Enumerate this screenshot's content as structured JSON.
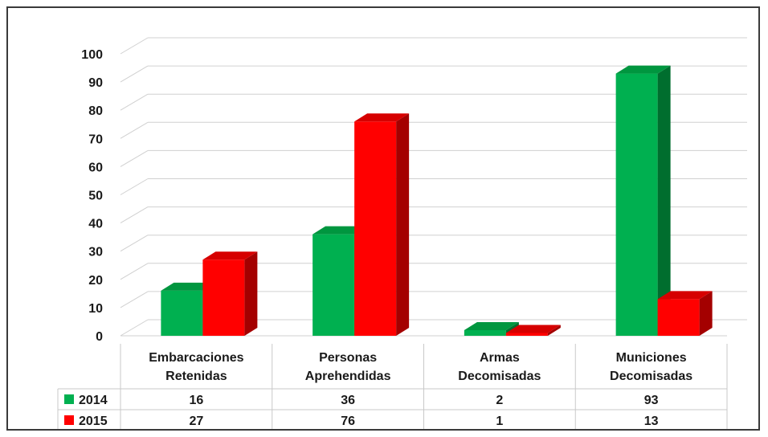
{
  "chart_data": {
    "type": "bar",
    "title": "",
    "xlabel": "",
    "ylabel": "",
    "ylim": [
      0,
      100
    ],
    "y_ticks": [
      0,
      10,
      20,
      30,
      40,
      50,
      60,
      70,
      80,
      90,
      100
    ],
    "grid": true,
    "style": "3d-clustered-column",
    "categories": [
      [
        "Embarcaciones",
        "Retenidas"
      ],
      [
        "Personas",
        "Aprehendidas"
      ],
      [
        "Armas",
        "Decomisadas"
      ],
      [
        "Municiones",
        "Decomisadas"
      ]
    ],
    "series": [
      {
        "name": "2014",
        "values": [
          16,
          36,
          2,
          93
        ],
        "color": "#00b050",
        "shade": "#006e2e",
        "top": "#00963f"
      },
      {
        "name": "2015",
        "values": [
          27,
          76,
          1,
          13
        ],
        "color": "#ff0000",
        "shade": "#a40000",
        "top": "#d60000"
      }
    ],
    "data_table": true
  }
}
